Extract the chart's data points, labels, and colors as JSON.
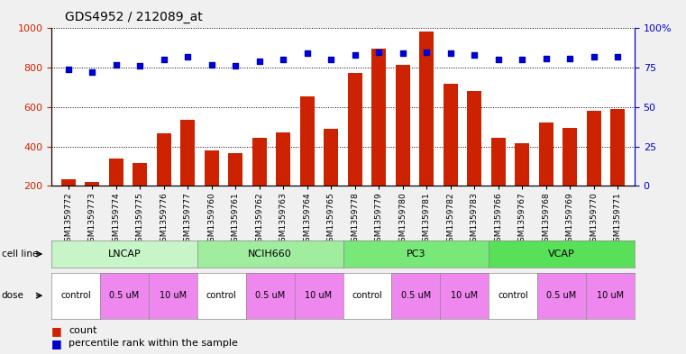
{
  "title": "GDS4952 / 212089_at",
  "samples": [
    "GSM1359772",
    "GSM1359773",
    "GSM1359774",
    "GSM1359775",
    "GSM1359776",
    "GSM1359777",
    "GSM1359760",
    "GSM1359761",
    "GSM1359762",
    "GSM1359763",
    "GSM1359764",
    "GSM1359765",
    "GSM1359778",
    "GSM1359779",
    "GSM1359780",
    "GSM1359781",
    "GSM1359782",
    "GSM1359783",
    "GSM1359766",
    "GSM1359767",
    "GSM1359768",
    "GSM1359769",
    "GSM1359770",
    "GSM1359771"
  ],
  "bar_values": [
    235,
    220,
    340,
    315,
    465,
    535,
    380,
    365,
    445,
    470,
    655,
    490,
    775,
    895,
    815,
    985,
    720,
    680,
    445,
    415,
    520,
    495,
    580,
    590
  ],
  "dot_values": [
    74,
    72,
    77,
    76,
    80,
    82,
    77,
    76,
    79,
    80,
    84,
    80,
    83,
    85,
    84,
    85,
    84,
    83,
    80,
    80,
    81,
    81,
    82,
    82
  ],
  "cell_line_info": [
    {
      "name": "LNCAP",
      "count": 6,
      "color": "#c8f5c8"
    },
    {
      "name": "NCIH660",
      "count": 6,
      "color": "#a0eda0"
    },
    {
      "name": "PC3",
      "count": 6,
      "color": "#78e878"
    },
    {
      "name": "VCAP",
      "count": 6,
      "color": "#58e058"
    }
  ],
  "dose_pattern": [
    {
      "name": "control",
      "count": 2,
      "color": "#ffffff"
    },
    {
      "name": "0.5 uM",
      "count": 2,
      "color": "#ee88ee"
    },
    {
      "name": "10 uM",
      "count": 2,
      "color": "#ee88ee"
    }
  ],
  "bar_color": "#cc2200",
  "dot_color": "#0000cc",
  "ylim_left": [
    200,
    1000
  ],
  "ylim_right": [
    0,
    100
  ],
  "yticks_left": [
    200,
    400,
    600,
    800,
    1000
  ],
  "yticks_right": [
    0,
    25,
    50,
    75,
    100
  ],
  "background_color": "#f0f0f0",
  "plot_bg_color": "#ffffff"
}
